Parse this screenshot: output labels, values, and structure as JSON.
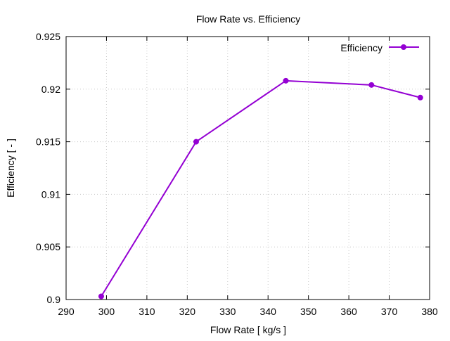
{
  "chart_data": {
    "type": "line",
    "title": "Flow Rate  vs. Efficiency",
    "xlabel": "Flow Rate [ kg/s ]",
    "ylabel": "Efficiency [ - ]",
    "xlim": [
      290,
      380
    ],
    "ylim": [
      0.9,
      0.925
    ],
    "xticks": [
      290,
      300,
      310,
      320,
      330,
      340,
      350,
      360,
      370,
      380
    ],
    "xtick_labels": [
      "290",
      "300",
      "310",
      "320",
      "330",
      "340",
      "350",
      "360",
      "370",
      "380"
    ],
    "yticks": [
      0.9,
      0.905,
      0.91,
      0.915,
      0.92,
      0.925
    ],
    "ytick_labels": [
      "0.9",
      "0.905",
      "0.91",
      "0.915",
      "0.92",
      "0.925"
    ],
    "grid": true,
    "legend_position": "top-right",
    "series": [
      {
        "name": "Efficiency",
        "color": "#9400d3",
        "x": [
          298.7,
          322.2,
          344.4,
          365.6,
          377.7
        ],
        "y": [
          0.9003,
          0.915,
          0.9208,
          0.9204,
          0.9192
        ]
      }
    ]
  }
}
